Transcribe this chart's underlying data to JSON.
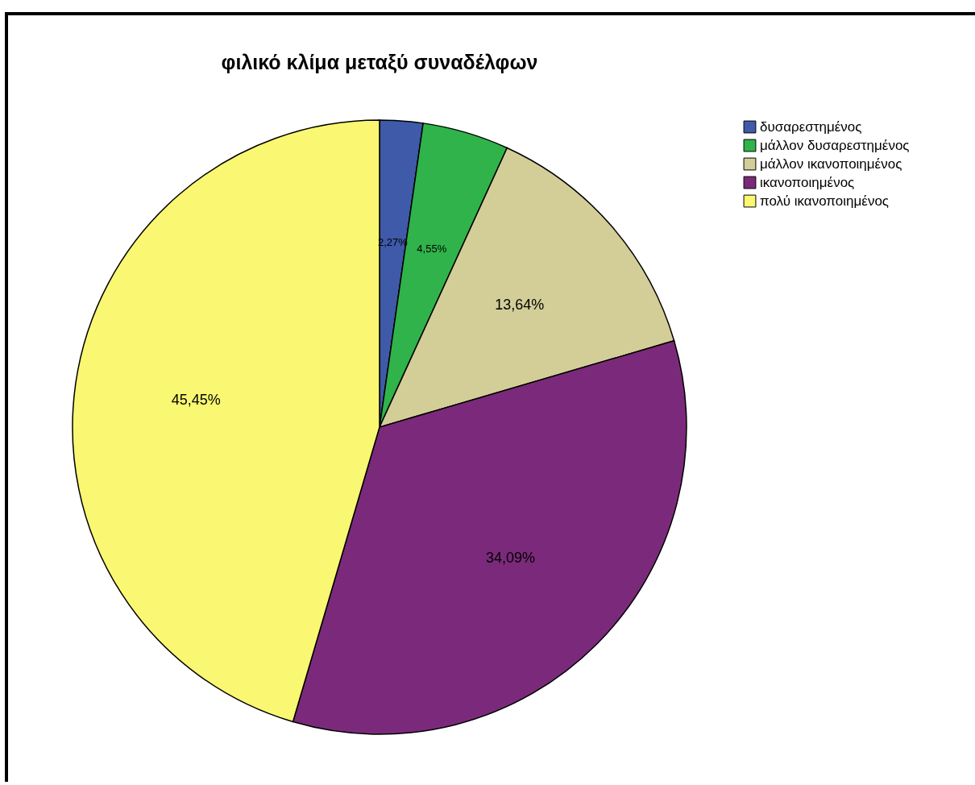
{
  "chart_data": {
    "type": "pie",
    "title": "φιλικό κλίμα μεταξύ συναδέλφων",
    "categories": [
      "δυσαρεστημένος",
      "μάλλον δυσαρεστημένος",
      "μάλλον ικανοποιημένος",
      "ικανοποιημένος",
      "πολύ ικανοποιημένος"
    ],
    "values": [
      2.27,
      4.55,
      13.64,
      34.09,
      45.45
    ],
    "colors": [
      "#3e5aa8",
      "#30b34a",
      "#d3cd98",
      "#7b2a7b",
      "#faf772"
    ],
    "value_labels": [
      "2,27%",
      "4,55%",
      "13,64%",
      "34,09%",
      "45,45%"
    ],
    "legend": "top right"
  }
}
